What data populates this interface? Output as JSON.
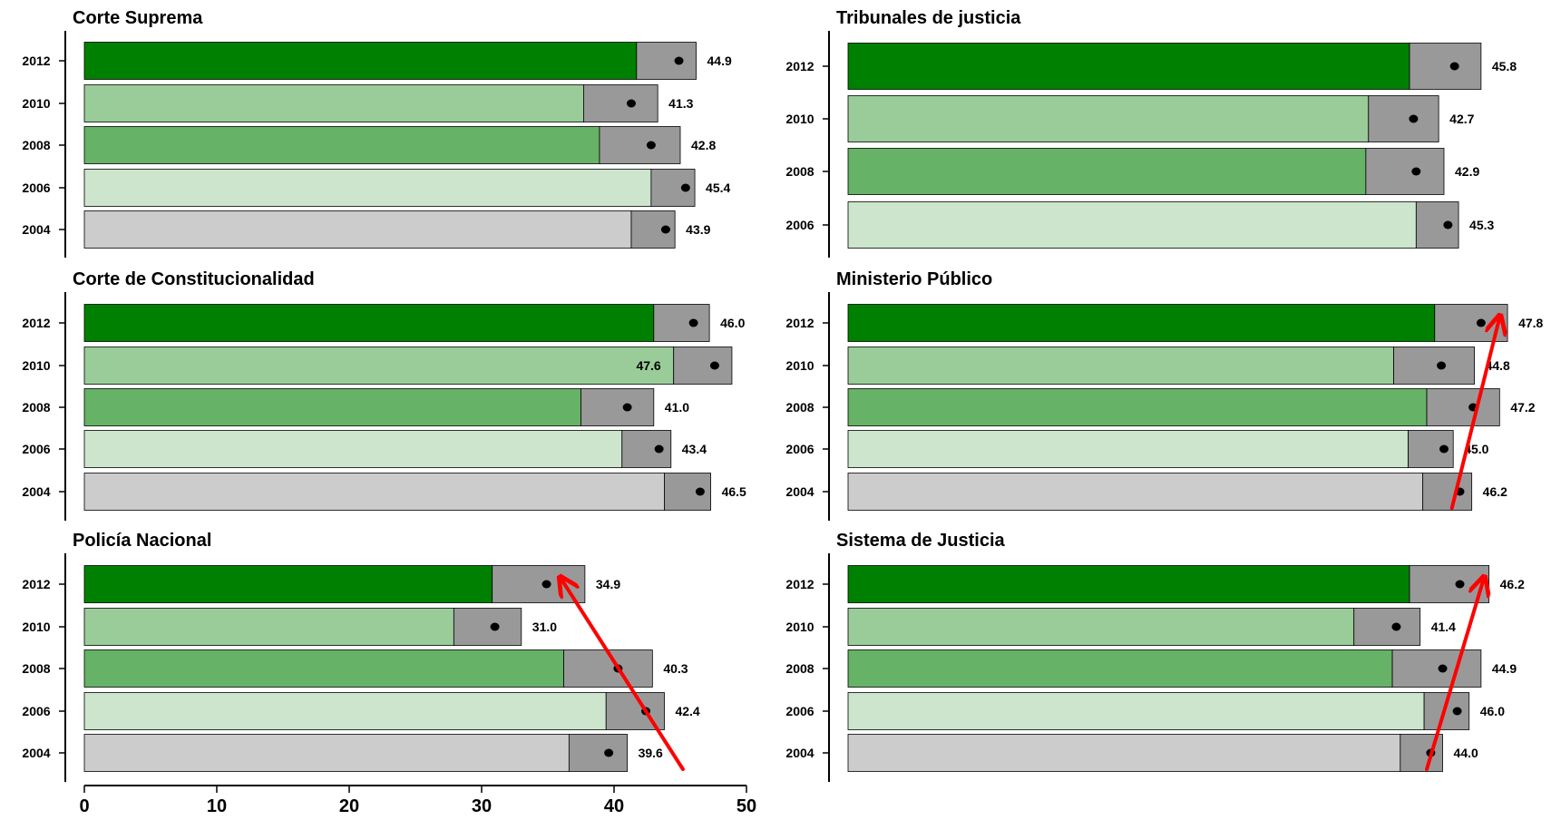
{
  "chart_data": [
    {
      "type": "bar",
      "title": "Corte Suprema",
      "categories": [
        "2012",
        "2010",
        "2008",
        "2006",
        "2004"
      ],
      "values": [
        44.9,
        41.3,
        42.8,
        45.4,
        43.9
      ],
      "interval_low": [
        41.7,
        37.7,
        38.9,
        42.8,
        41.3
      ],
      "interval_high": [
        46.2,
        43.3,
        45.0,
        46.1,
        44.6
      ],
      "arrow": null
    },
    {
      "type": "bar",
      "title": "Tribunales de justicia",
      "categories": [
        "2012",
        "2010",
        "2008",
        "2006"
      ],
      "values": [
        45.8,
        42.7,
        42.9,
        45.3
      ],
      "interval_low": [
        42.4,
        39.3,
        39.1,
        42.9
      ],
      "interval_high": [
        47.8,
        44.6,
        45.0,
        46.1
      ],
      "arrow": null
    },
    {
      "type": "bar",
      "title": "Corte de Constitucionalidad",
      "categories": [
        "2012",
        "2010",
        "2008",
        "2006",
        "2004"
      ],
      "values": [
        46.0,
        47.6,
        41.0,
        43.4,
        46.5
      ],
      "interval_low": [
        43.0,
        44.5,
        37.5,
        40.6,
        43.8
      ],
      "interval_high": [
        47.2,
        48.9,
        43.0,
        44.3,
        47.3
      ],
      "arrow": null
    },
    {
      "type": "bar",
      "title": "Ministerio Público",
      "categories": [
        "2012",
        "2010",
        "2008",
        "2006",
        "2004"
      ],
      "values": [
        47.8,
        44.8,
        47.2,
        45.0,
        46.2
      ],
      "interval_low": [
        44.3,
        41.2,
        43.7,
        42.3,
        43.4
      ],
      "interval_high": [
        49.8,
        47.3,
        49.2,
        45.7,
        47.1
      ],
      "arrow": {
        "from": [
          45.6,
          "2004"
        ],
        "to": [
          49.2,
          "2012"
        ]
      }
    },
    {
      "type": "bar",
      "title": "Policía Nacional",
      "categories": [
        "2012",
        "2010",
        "2008",
        "2006",
        "2004"
      ],
      "values": [
        34.9,
        31.0,
        40.3,
        42.4,
        39.6
      ],
      "interval_low": [
        30.8,
        27.9,
        36.2,
        39.4,
        36.6
      ],
      "interval_high": [
        37.8,
        33.0,
        42.9,
        43.8,
        41.0
      ],
      "arrow": {
        "from": [
          45.2,
          "2004"
        ],
        "to": [
          36.0,
          "2012"
        ]
      }
    },
    {
      "type": "bar",
      "title": "Sistema de Justicia",
      "categories": [
        "2012",
        "2010",
        "2008",
        "2006",
        "2004"
      ],
      "values": [
        46.2,
        41.4,
        44.9,
        46.0,
        44.0
      ],
      "interval_low": [
        42.4,
        38.2,
        41.1,
        43.5,
        41.7
      ],
      "interval_high": [
        48.4,
        43.2,
        47.8,
        46.9,
        44.9
      ],
      "arrow": {
        "from": [
          43.7,
          "2004"
        ],
        "to": [
          48.0,
          "2012"
        ]
      }
    }
  ],
  "x_axis": {
    "range": [
      0,
      50
    ],
    "ticks": [
      "0",
      "10",
      "20",
      "30",
      "40",
      "50"
    ]
  },
  "colors": {
    "2012": "#008000",
    "2010": "#99cc99",
    "2008": "#66b266",
    "2006": "#cce5cc",
    "2004": "#cccccc",
    "interval": "#999999",
    "arrow": "#ff0000"
  }
}
